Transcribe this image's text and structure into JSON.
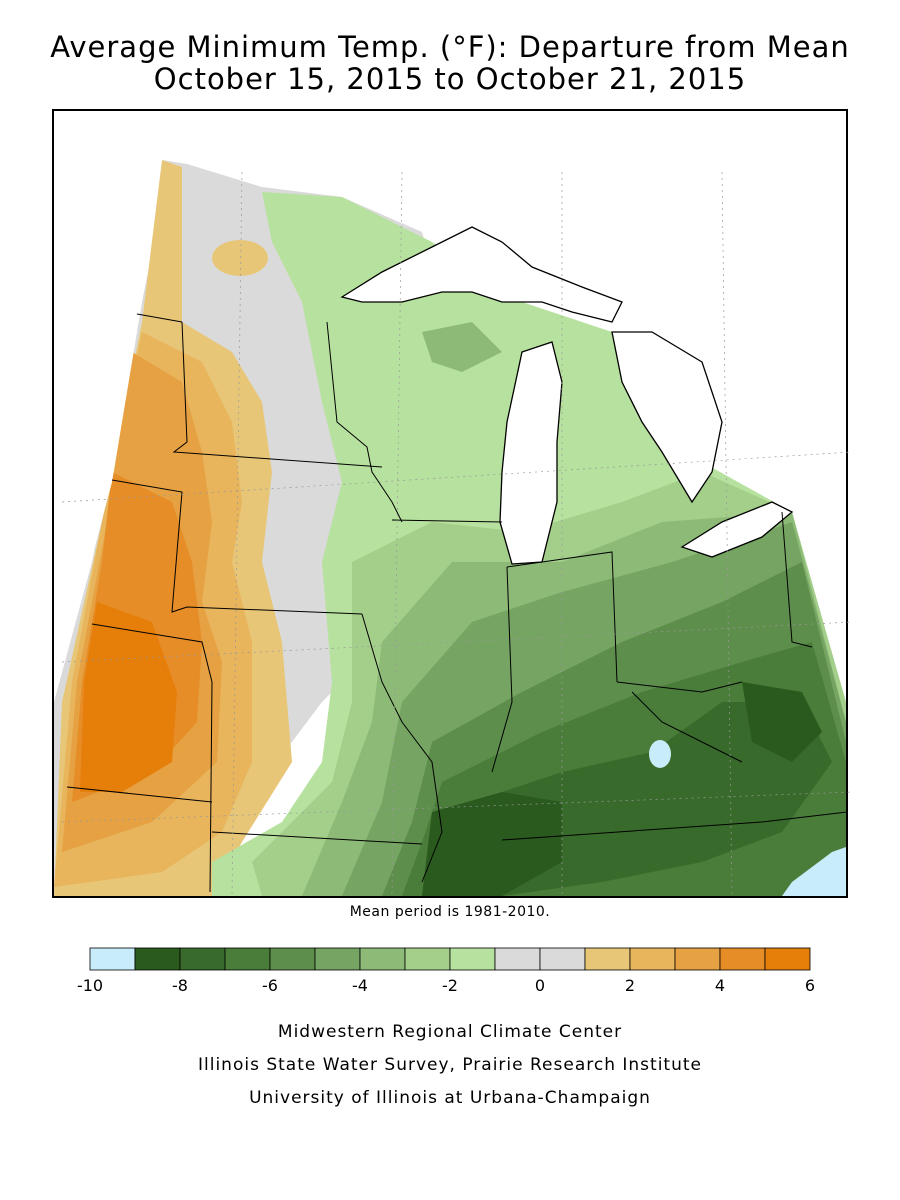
{
  "title": {
    "line1": "Average Minimum Temp. (°F): Departure from Mean",
    "line2": "October 15, 2015 to October 21, 2015"
  },
  "note": "Mean period is 1981-2010.",
  "legend": {
    "ticks": [
      "-10",
      "-8",
      "-6",
      "-4",
      "-2",
      "0",
      "2",
      "4",
      "6"
    ],
    "bins": [
      {
        "range": [
          -10,
          -9
        ],
        "color": "#c8ecfa"
      },
      {
        "range": [
          -9,
          -8
        ],
        "color": "#2a5a1e"
      },
      {
        "range": [
          -8,
          -7
        ],
        "color": "#386b2b"
      },
      {
        "range": [
          -7,
          -6
        ],
        "color": "#4a7d3a"
      },
      {
        "range": [
          -6,
          -5
        ],
        "color": "#5e8e4c"
      },
      {
        "range": [
          -5,
          -4
        ],
        "color": "#76a563"
      },
      {
        "range": [
          -4,
          -3
        ],
        "color": "#8dbb77"
      },
      {
        "range": [
          -3,
          -2
        ],
        "color": "#a3cf8b"
      },
      {
        "range": [
          -2,
          -1
        ],
        "color": "#b7e19e"
      },
      {
        "range": [
          -1,
          0
        ],
        "color": "#dadada"
      },
      {
        "range": [
          0,
          1
        ],
        "color": "#dadada"
      },
      {
        "range": [
          1,
          2
        ],
        "color": "#e8c678"
      },
      {
        "range": [
          2,
          3
        ],
        "color": "#e8b45c"
      },
      {
        "range": [
          3,
          4
        ],
        "color": "#e6a142"
      },
      {
        "range": [
          4,
          5
        ],
        "color": "#e68d27"
      },
      {
        "range": [
          5,
          6
        ],
        "color": "#e67e0a"
      }
    ]
  },
  "footer": {
    "line1": "Midwestern Regional Climate Center",
    "line2": "Illinois State Water Survey, Prairie Research Institute",
    "line3": "University of Illinois at Urbana-Champaign"
  }
}
